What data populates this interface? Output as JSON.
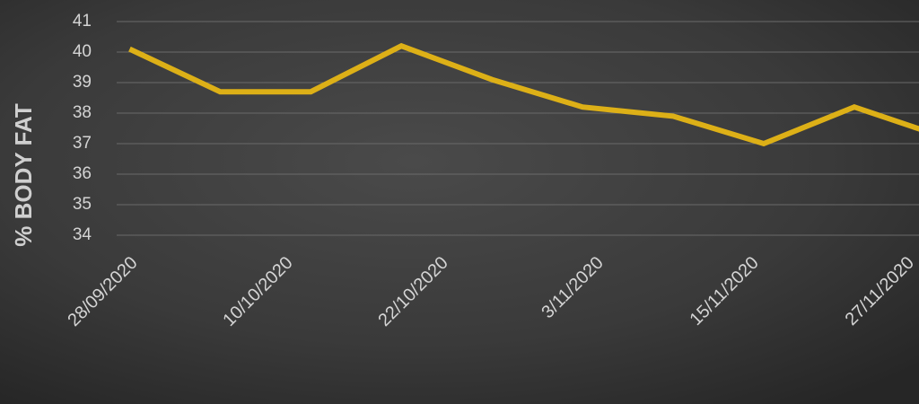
{
  "chart_data": {
    "type": "line",
    "y_label": "% BODY FAT",
    "x": [
      "2020-09-28",
      "2020-10-05",
      "2020-10-12",
      "2020-10-19",
      "2020-10-26",
      "2020-11-02",
      "2020-11-09",
      "2020-11-16",
      "2020-11-23",
      "2020-11-30"
    ],
    "series": [
      {
        "name": "Body fat",
        "color": "#ddb017",
        "values": [
          40.1,
          38.7,
          38.7,
          40.2,
          39.1,
          38.2,
          37.9,
          37.0,
          38.2,
          37.2
        ]
      }
    ],
    "xlim": [
      "2020-09-27",
      "2020-11-28"
    ],
    "xticks": [
      {
        "value": "2020-09-28",
        "label": "28/09/2020"
      },
      {
        "value": "2020-10-10",
        "label": "10/10/2020"
      },
      {
        "value": "2020-10-22",
        "label": "22/10/2020"
      },
      {
        "value": "2020-11-03",
        "label": "3/11/2020"
      },
      {
        "value": "2020-11-15",
        "label": "15/11/2020"
      },
      {
        "value": "2020-11-27",
        "label": "27/11/2020"
      }
    ],
    "ylim": [
      34,
      41
    ],
    "yticks": [
      34,
      35,
      36,
      37,
      38,
      39,
      40,
      41
    ],
    "grid": true
  }
}
